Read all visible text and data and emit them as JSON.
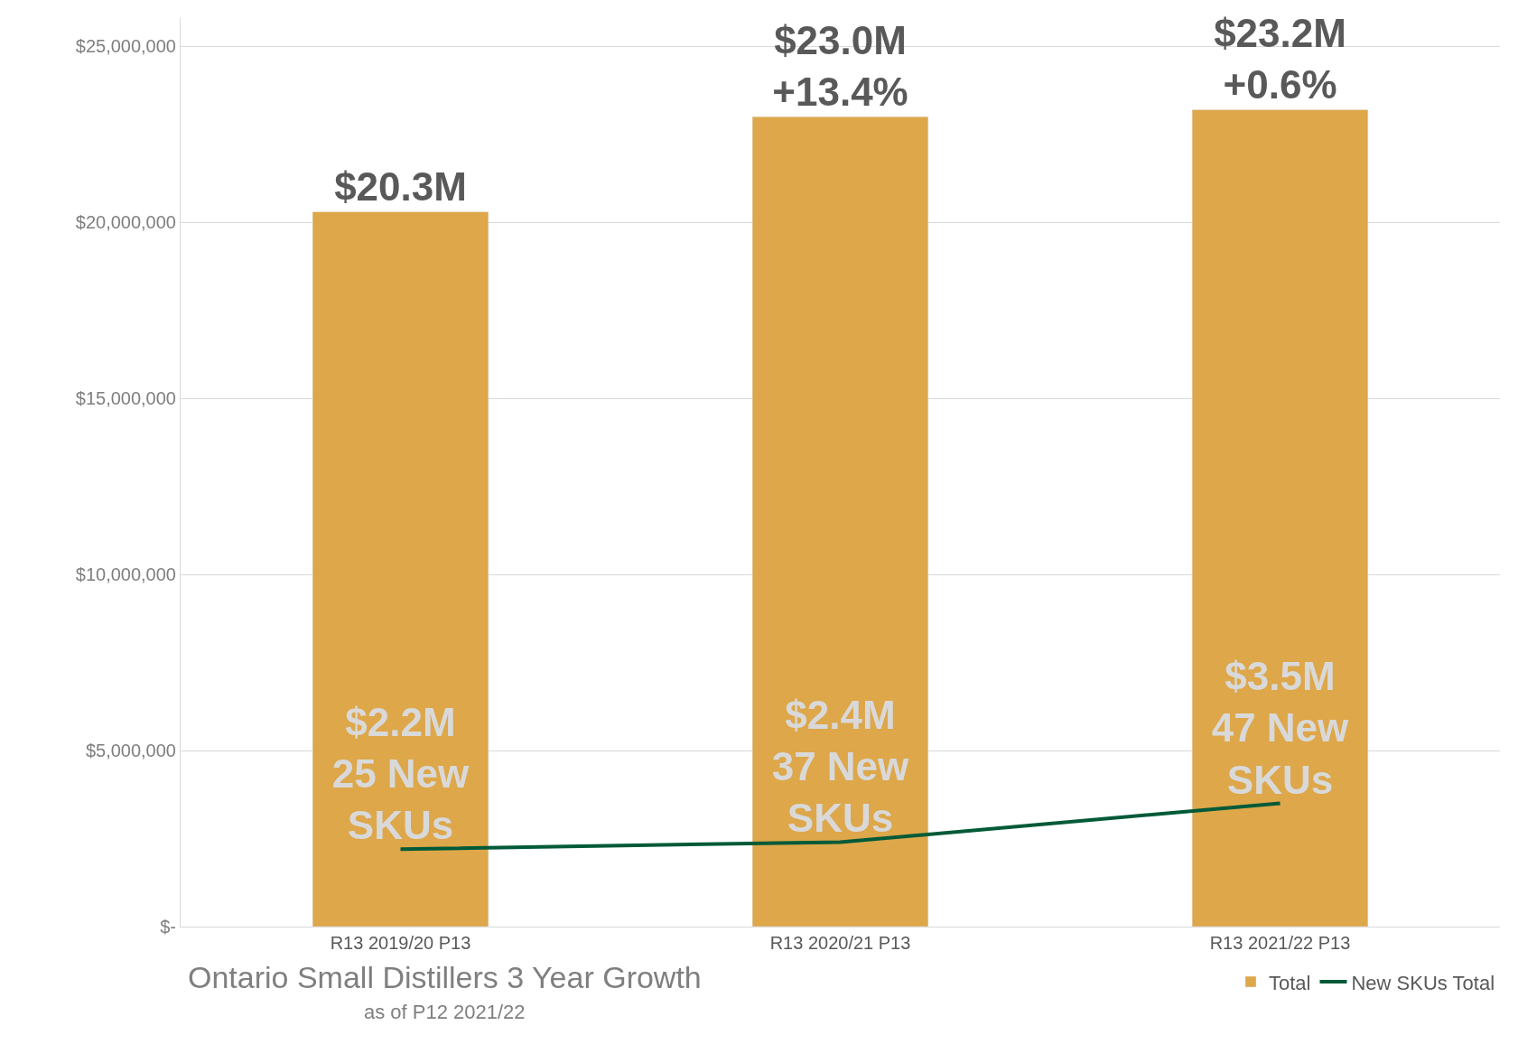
{
  "chart_data": {
    "type": "bar",
    "title": "Ontario Small Distillers 3 Year Growth",
    "subtitle": "as of P12 2021/22",
    "categories": [
      "R13 2019/20 P13",
      "R13 2020/21 P13",
      "R13 2021/22 P13"
    ],
    "series": [
      {
        "name": "Total",
        "color": "#dda74a",
        "values": [
          20300000,
          23000000,
          23200000
        ],
        "value_labels": [
          "$20.3M",
          "$23.0M\n+13.4%",
          "$23.2M\n+0.6%"
        ]
      },
      {
        "name": "New SKUs Total",
        "type": "line",
        "color": "#005a38",
        "values": [
          2200000,
          2400000,
          3500000
        ],
        "value_labels": [
          "$2.2M\n25 New\nSKUs",
          "$2.4M\n37 New\nSKUs",
          "$3.5M\n47 New\nSKUs"
        ]
      }
    ],
    "ylim": [
      0,
      25800000
    ],
    "yticks": [
      {
        "value": 0,
        "label": "$-"
      },
      {
        "value": 5000000,
        "label": "$5,000,000"
      },
      {
        "value": 10000000,
        "label": "$10,000,000"
      },
      {
        "value": 15000000,
        "label": "$15,000,000"
      },
      {
        "value": 20000000,
        "label": "$20,000,000"
      },
      {
        "value": 25000000,
        "label": "$25,000,000"
      }
    ],
    "grid": "y",
    "legend": "bottom right",
    "marker": "none",
    "line_style": "solid"
  }
}
